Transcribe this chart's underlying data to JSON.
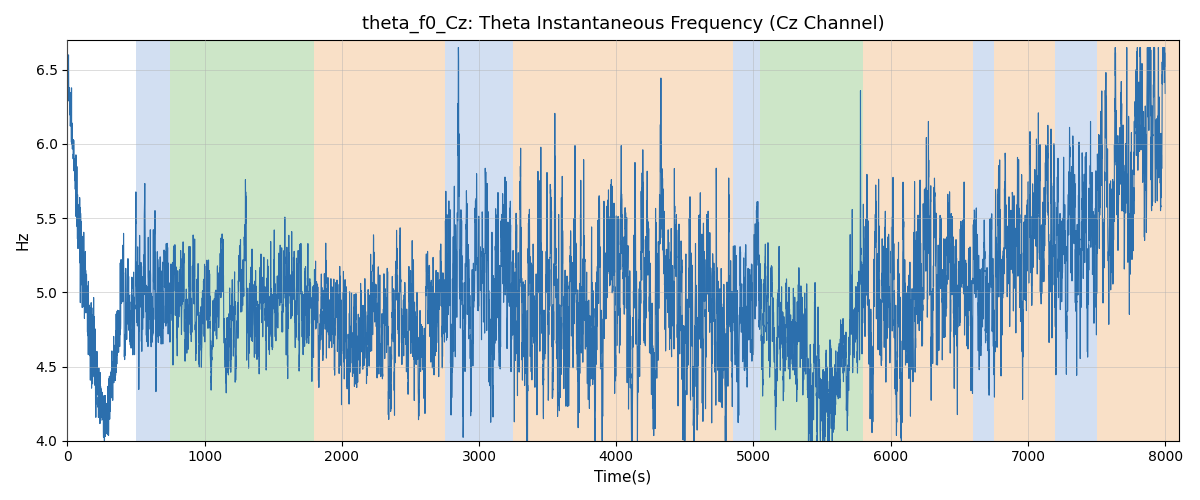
{
  "title": "theta_f0_Cz: Theta Instantaneous Frequency (Cz Channel)",
  "xlabel": "Time(s)",
  "ylabel": "Hz",
  "ylim": [
    4.0,
    6.7
  ],
  "xlim": [
    0,
    8100
  ],
  "line_color": "#2c6fad",
  "line_width": 0.8,
  "bg_color": "#ffffff",
  "grid_color": "#b0b0b0",
  "bands": [
    {
      "xmin": 500,
      "xmax": 750,
      "color": "#aec6e8",
      "alpha": 0.55
    },
    {
      "xmin": 750,
      "xmax": 1800,
      "color": "#90c987",
      "alpha": 0.45
    },
    {
      "xmin": 1800,
      "xmax": 2750,
      "color": "#f5c89a",
      "alpha": 0.55
    },
    {
      "xmin": 2750,
      "xmax": 3250,
      "color": "#aec6e8",
      "alpha": 0.55
    },
    {
      "xmin": 3250,
      "xmax": 4850,
      "color": "#f5c89a",
      "alpha": 0.55
    },
    {
      "xmin": 4850,
      "xmax": 5050,
      "color": "#aec6e8",
      "alpha": 0.55
    },
    {
      "xmin": 5050,
      "xmax": 5800,
      "color": "#90c987",
      "alpha": 0.45
    },
    {
      "xmin": 5800,
      "xmax": 6600,
      "color": "#f5c89a",
      "alpha": 0.55
    },
    {
      "xmin": 6600,
      "xmax": 6750,
      "color": "#aec6e8",
      "alpha": 0.55
    },
    {
      "xmin": 6750,
      "xmax": 7200,
      "color": "#f5c89a",
      "alpha": 0.55
    },
    {
      "xmin": 7200,
      "xmax": 7500,
      "color": "#aec6e8",
      "alpha": 0.55
    },
    {
      "xmin": 7500,
      "xmax": 8100,
      "color": "#f5c89a",
      "alpha": 0.55
    }
  ],
  "seed": 12345,
  "n_points": 8000,
  "title_fontsize": 13,
  "label_fontsize": 11
}
